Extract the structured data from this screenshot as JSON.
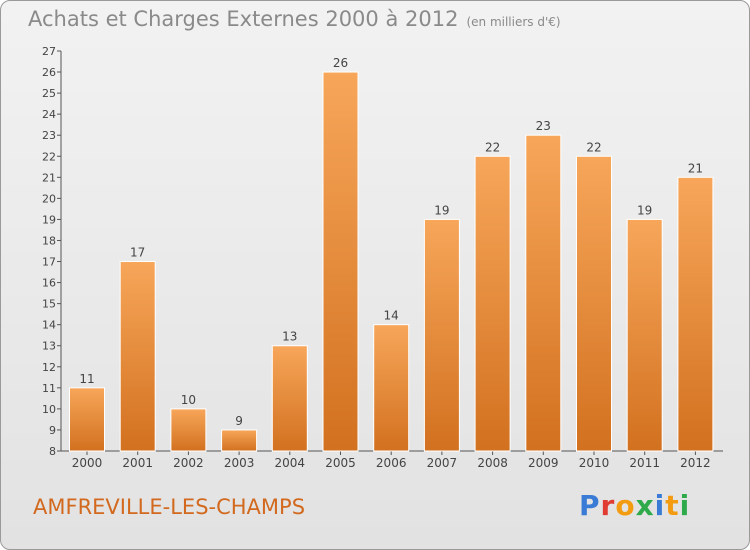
{
  "header": {
    "title": "Achats et Charges Externes 2000 à 2012",
    "subtitle": "(en milliers d'€)"
  },
  "footer": {
    "commune": "AMFREVILLE-LES-CHAMPS",
    "logo_text": "Proxiti",
    "logo_colors": [
      "#3a7bd5",
      "#e03c31",
      "#f39c12",
      "#2eaa4a",
      "#3a7bd5",
      "#f39c12",
      "#2eaa4a"
    ]
  },
  "colors": {
    "bar_top": "#f7a65a",
    "bar_bottom": "#d2711f",
    "bar_edge": "#ffffff",
    "axis": "#555555"
  },
  "chart_data": {
    "type": "bar",
    "title": "Achats et Charges Externes 2000 à 2012",
    "subtitle": "(en milliers d'€)",
    "categories": [
      "2000",
      "2001",
      "2002",
      "2003",
      "2004",
      "2005",
      "2006",
      "2007",
      "2008",
      "2009",
      "2010",
      "2011",
      "2012"
    ],
    "values": [
      11,
      17,
      10,
      9,
      13,
      26,
      14,
      19,
      22,
      23,
      22,
      19,
      21
    ],
    "value_labels": [
      "11",
      "17",
      "10",
      "9",
      "13",
      "26",
      "14",
      "19",
      "22",
      "23",
      "22",
      "19",
      "21"
    ],
    "ylim": [
      8,
      27
    ],
    "yticks": [
      "8",
      "9",
      "10",
      "11",
      "12",
      "13",
      "14",
      "15",
      "16",
      "17",
      "18",
      "19",
      "20",
      "21",
      "22",
      "23",
      "24",
      "25",
      "26",
      "27"
    ],
    "xlabel": "",
    "ylabel": "",
    "grid": false,
    "legend": "none"
  }
}
